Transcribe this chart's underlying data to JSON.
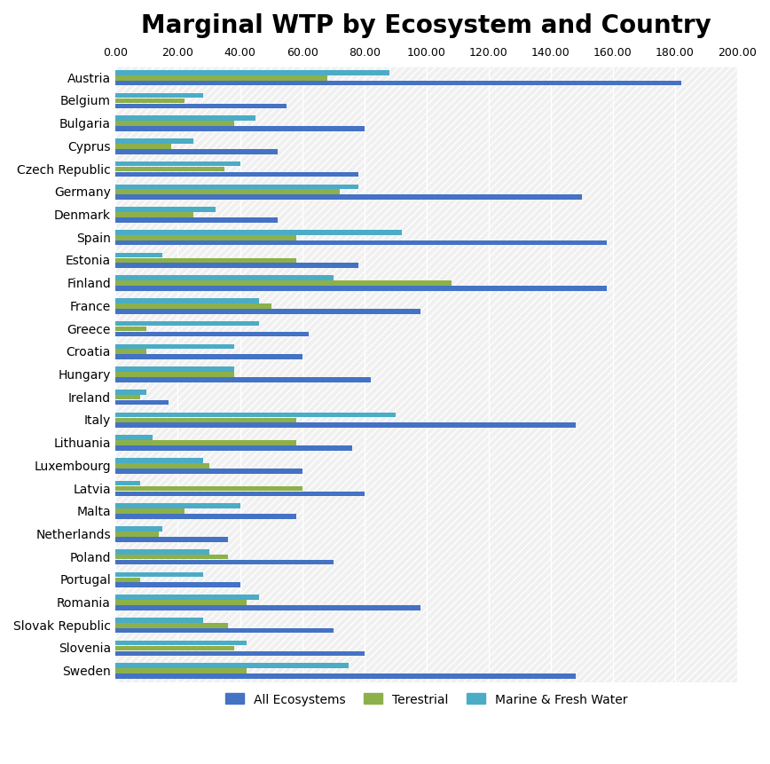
{
  "title": "Marginal WTP by Ecosystem and Country",
  "countries": [
    "Austria",
    "Belgium",
    "Bulgaria",
    "Cyprus",
    "Czech Republic",
    "Germany",
    "Denmark",
    "Spain",
    "Estonia",
    "Finland",
    "France",
    "Greece",
    "Croatia",
    "Hungary",
    "Ireland",
    "Italy",
    "Lithuania",
    "Luxembourg",
    "Latvia",
    "Malta",
    "Netherlands",
    "Poland",
    "Portugal",
    "Romania",
    "Slovak Republic",
    "Slovenia",
    "Sweden"
  ],
  "all_ecosystems": [
    182,
    55,
    80,
    52,
    78,
    150,
    52,
    158,
    78,
    158,
    98,
    62,
    60,
    82,
    17,
    148,
    76,
    60,
    80,
    58,
    36,
    70,
    40,
    98,
    70,
    80,
    148
  ],
  "terrestrial": [
    68,
    22,
    38,
    18,
    35,
    72,
    25,
    58,
    58,
    108,
    50,
    10,
    10,
    38,
    8,
    58,
    58,
    30,
    60,
    22,
    14,
    36,
    8,
    42,
    36,
    38,
    42
  ],
  "marine_fresh": [
    88,
    28,
    45,
    25,
    40,
    78,
    32,
    92,
    15,
    70,
    46,
    46,
    38,
    38,
    10,
    90,
    12,
    28,
    8,
    40,
    15,
    30,
    28,
    46,
    28,
    42,
    75
  ],
  "color_all": "#4472C4",
  "color_terrestrial": "#8DB04A",
  "color_marine": "#4BACC6",
  "xlim": [
    0,
    200
  ],
  "xticks": [
    0,
    20,
    40,
    60,
    80,
    100,
    120,
    140,
    160,
    180,
    200
  ],
  "xtick_labels": [
    "0.00",
    "20.00",
    "40.00",
    "60.00",
    "80.00",
    "100.00",
    "120.00",
    "140.00",
    "160.00",
    "180.00",
    "200.00"
  ],
  "legend_labels": [
    "All Ecosystems",
    "Terestrial",
    "Marine & Fresh Water"
  ],
  "background_color": "#FFFFFF",
  "title_fontsize": 20,
  "bar_height": 0.22,
  "figsize": [
    8.68,
    8.62
  ],
  "dpi": 100
}
